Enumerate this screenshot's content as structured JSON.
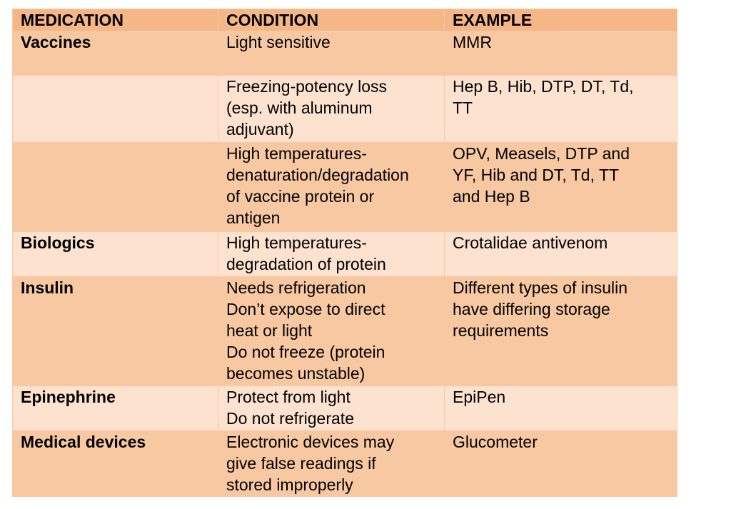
{
  "headers": {
    "medication": "MEDICATION",
    "condition": "CONDITION",
    "example": "EXAMPLE"
  },
  "rows": [
    {
      "medication": "Vaccines",
      "condition": [
        "Light sensitive"
      ],
      "example": [
        "MMR"
      ]
    },
    {
      "medication": "",
      "condition": [
        "Freezing-potency loss",
        "(esp. with aluminum",
        "adjuvant)"
      ],
      "example": [
        "Hep B, Hib, DTP, DT, Td,",
        "TT"
      ]
    },
    {
      "medication": "",
      "condition": [
        "High temperatures-",
        "denaturation/degradation",
        "of vaccine protein or",
        "antigen"
      ],
      "example": [
        "OPV, Measels, DTP and",
        "YF, Hib and DT, Td, TT",
        "and Hep B"
      ]
    },
    {
      "medication": "Biologics",
      "condition": [
        "High temperatures-",
        "degradation of protein"
      ],
      "example": [
        "Crotalidae antivenom"
      ]
    },
    {
      "medication": "Insulin",
      "condition": [
        "Needs refrigeration",
        "Don’t expose to direct",
        "heat or light",
        "Do not freeze (protein",
        "becomes unstable)"
      ],
      "example": [
        "Different types of insulin",
        "have differing storage",
        "requirements"
      ]
    },
    {
      "medication": "Epinephrine",
      "condition": [
        "Protect from light",
        "Do not refrigerate"
      ],
      "example": [
        "EpiPen"
      ]
    },
    {
      "medication": "Medical devices",
      "condition": [
        "Electronic devices may",
        "give false readings if",
        "stored improperly"
      ],
      "example": [
        "Glucometer"
      ]
    }
  ]
}
